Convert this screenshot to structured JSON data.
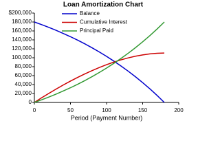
{
  "chart_data": {
    "type": "line",
    "title": "Loan Amortization Chart",
    "x_label": "Period (Payment Number)",
    "x": [
      0,
      10,
      20,
      30,
      40,
      50,
      60,
      70,
      80,
      90,
      100,
      110,
      120,
      130,
      140,
      150,
      160,
      170,
      180
    ],
    "series": [
      {
        "name": "Balance",
        "color": "#0000cc",
        "values": [
          180000,
          174200,
          168000,
          161400,
          154400,
          147100,
          139300,
          131000,
          122200,
          112900,
          103100,
          92600,
          81600,
          69900,
          57500,
          44300,
          30400,
          15700,
          0
        ]
      },
      {
        "name": "Cumulative Interest",
        "color": "#cc0000",
        "values": [
          0,
          10300,
          20200,
          29800,
          39000,
          47800,
          56100,
          63900,
          71300,
          78200,
          84500,
          90200,
          95300,
          99700,
          103400,
          106400,
          108600,
          110000,
          110500
        ]
      },
      {
        "name": "Principal Paid",
        "color": "#339933",
        "values": [
          0,
          5800,
          12000,
          18600,
          25600,
          32900,
          40700,
          49000,
          57800,
          67100,
          76900,
          87400,
          98400,
          110100,
          122500,
          135700,
          149600,
          164300,
          180000
        ]
      }
    ],
    "xlim": [
      0,
      200
    ],
    "xticks": [
      0,
      50,
      100,
      150,
      200
    ],
    "ylim": [
      0,
      200000
    ],
    "yticks": [
      0,
      {
        "value": 20000,
        "label": "20,000"
      },
      {
        "value": 40000,
        "label": "40,000"
      },
      {
        "value": 60000,
        "label": "60,000"
      },
      {
        "value": 80000,
        "label": "80,000"
      },
      {
        "value": 100000,
        "label": "100,000"
      },
      {
        "value": 120000,
        "label": "120,000"
      },
      {
        "value": 140000,
        "label": "140,000"
      },
      {
        "value": 160000,
        "label": "160,000"
      },
      {
        "value": 180000,
        "label": "180,000"
      },
      {
        "value": 200000,
        "label": "$200,000"
      }
    ]
  }
}
